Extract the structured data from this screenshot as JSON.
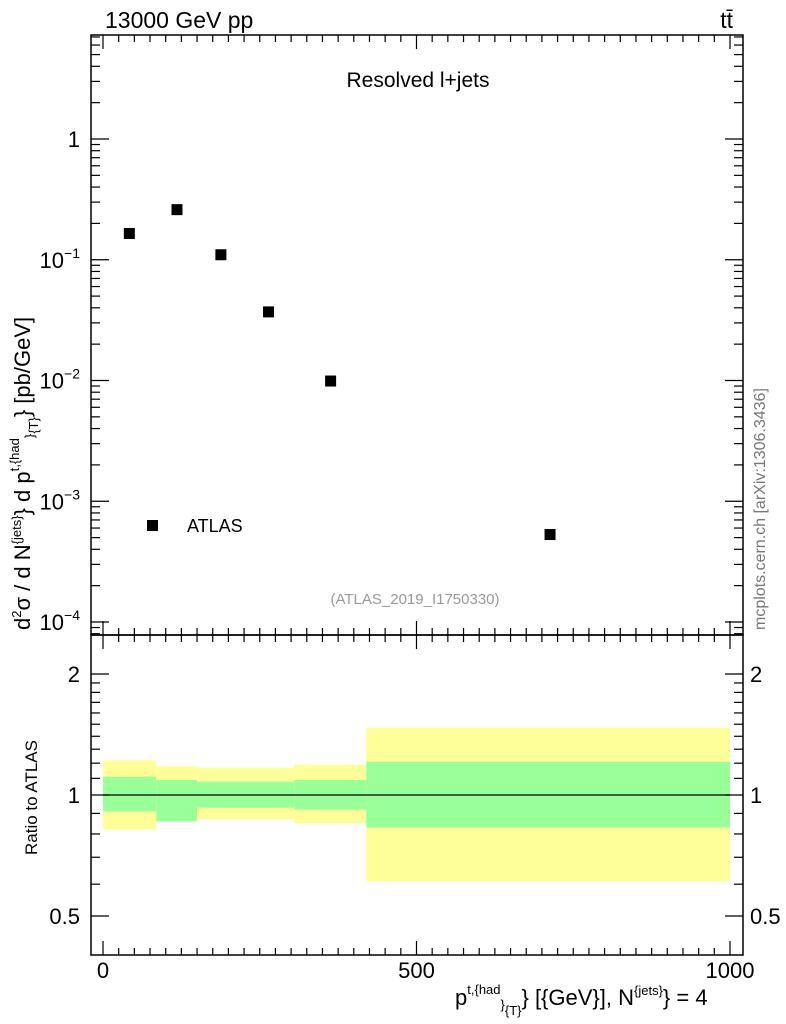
{
  "header": {
    "left": "13000 GeV pp",
    "right": "tt̄"
  },
  "side_label": "mcplots.cern.ch [arXiv:1306.3436]",
  "chart_data": [
    {
      "type": "scatter",
      "title": "Resolved l+jets",
      "ylabel": "d²σ / d N^{jets} d p^{t,{had}}_{T} [pb/GeV]",
      "yscale": "log",
      "ylim": [
        0.0001,
        10
      ],
      "xlim": [
        -25,
        1000
      ],
      "y_ticks": [
        {
          "value": 1,
          "label": "1"
        },
        {
          "value": 0.1,
          "base": "10",
          "exp": "−1"
        },
        {
          "value": 0.01,
          "base": "10",
          "exp": "−2"
        },
        {
          "value": 0.001,
          "base": "10",
          "exp": "−3"
        },
        {
          "value": 0.0001,
          "base": "10",
          "exp": "−4"
        }
      ],
      "watermark": "(ATLAS_2019_I1750330)",
      "legend": [
        {
          "name": "ATLAS",
          "marker": "square"
        }
      ],
      "legend_position": "bottom-left",
      "series": [
        {
          "name": "ATLAS",
          "points": [
            {
              "x": 42,
              "y": 0.165
            },
            {
              "x": 118,
              "y": 0.26
            },
            {
              "x": 188,
              "y": 0.11
            },
            {
              "x": 264,
              "y": 0.037
            },
            {
              "x": 363,
              "y": 0.0099
            },
            {
              "x": 713,
              "y": 0.00053
            }
          ]
        }
      ]
    },
    {
      "type": "area",
      "ylabel": "Ratio to ATLAS",
      "xlabel": "p^{t,{had}}_{T} [{GeV}], N^{jets} = 4",
      "yscale": "log",
      "ylim": [
        0.4,
        2.4
      ],
      "xlim": [
        -25,
        1000
      ],
      "y_ticks": [
        2,
        1,
        0.5
      ],
      "x_ticks": [
        0,
        500,
        1000
      ],
      "reference_line": 1,
      "bins": [
        {
          "x0": 0,
          "x1": 85,
          "inner": [
            0.91,
            1.11
          ],
          "outer": [
            0.82,
            1.22
          ]
        },
        {
          "x0": 85,
          "x1": 150,
          "inner": [
            0.86,
            1.09
          ],
          "outer": [
            0.86,
            1.18
          ]
        },
        {
          "x0": 150,
          "x1": 305,
          "inner": [
            0.93,
            1.08
          ],
          "outer": [
            0.87,
            1.17
          ]
        },
        {
          "x0": 305,
          "x1": 420,
          "inner": [
            0.92,
            1.09
          ],
          "outer": [
            0.85,
            1.19
          ]
        },
        {
          "x0": 420,
          "x1": 1000,
          "inner": [
            0.83,
            1.21
          ],
          "outer": [
            0.61,
            1.47
          ]
        }
      ],
      "colors": {
        "inner": "#99ff99",
        "outer": "#ffff99"
      }
    }
  ]
}
